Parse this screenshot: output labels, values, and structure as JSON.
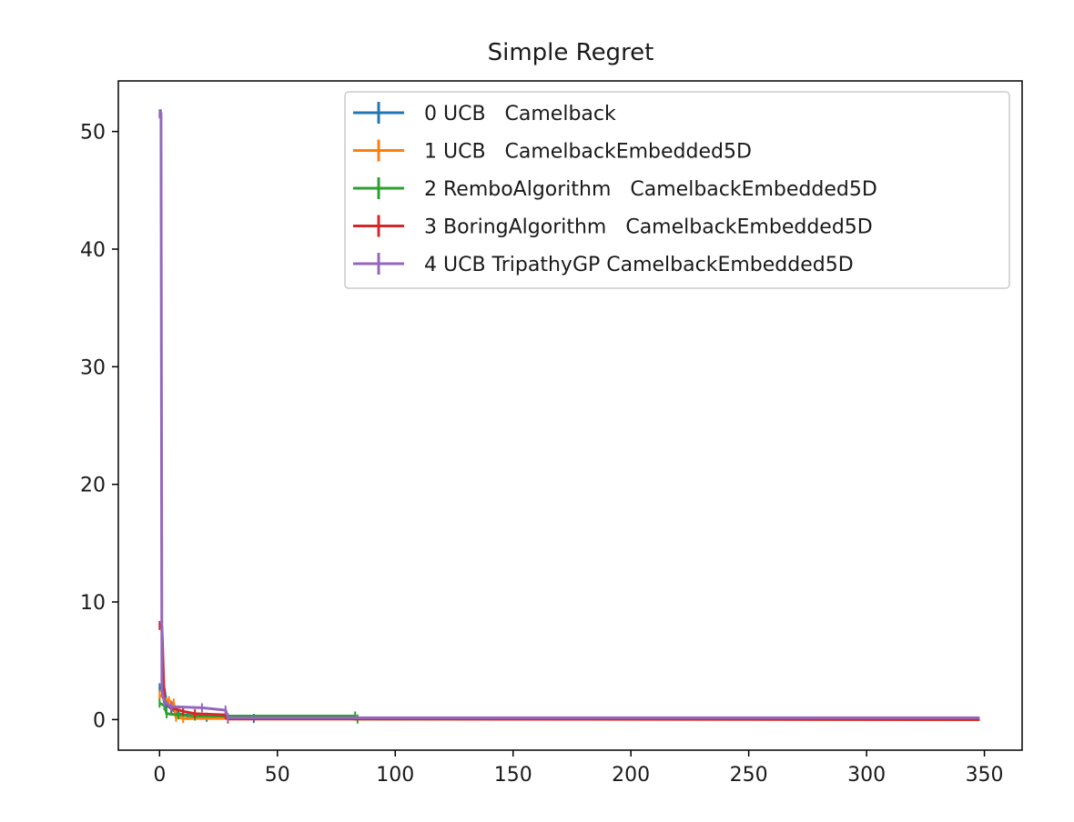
{
  "chart_data": {
    "type": "line",
    "title": "Simple Regret",
    "xlabel": "",
    "ylabel": "",
    "xlim": [
      -17.5,
      366
    ],
    "ylim": [
      -2.6,
      54.3
    ],
    "xticks": [
      0,
      50,
      100,
      150,
      200,
      250,
      300,
      350
    ],
    "yticks": [
      0,
      10,
      20,
      30,
      40,
      50
    ],
    "grid": false,
    "legend_position": "top-right",
    "series": [
      {
        "name": "0 UCB   Camelback",
        "color": "#1f77b4",
        "points": [
          [
            0,
            2.7
          ],
          [
            2,
            2.6
          ],
          [
            3,
            1.3
          ],
          [
            5,
            0.9
          ],
          [
            8,
            0.5
          ],
          [
            12,
            0.35
          ],
          [
            20,
            0.2
          ],
          [
            40,
            0.1
          ],
          [
            348,
            0.05
          ]
        ]
      },
      {
        "name": "1 UCB   CamelbackEmbedded5D",
        "color": "#ff7f0e",
        "points": [
          [
            0,
            2.1
          ],
          [
            2,
            1.8
          ],
          [
            4,
            1.6
          ],
          [
            6,
            1.4
          ],
          [
            7,
            0.2
          ],
          [
            10,
            0.1
          ],
          [
            348,
            0.0
          ]
        ]
      },
      {
        "name": "2 RemboAlgorithm   CamelbackEmbedded5D",
        "color": "#2ca02c",
        "points": [
          [
            0,
            1.4
          ],
          [
            2,
            1.2
          ],
          [
            3,
            0.5
          ],
          [
            8,
            0.4
          ],
          [
            15,
            0.3
          ],
          [
            83,
            0.3
          ],
          [
            84,
            0.05
          ],
          [
            348,
            0.05
          ]
        ]
      },
      {
        "name": "3 BoringAlgorithm   CamelbackEmbedded5D",
        "color": "#d62728",
        "points": [
          [
            0,
            8.0
          ],
          [
            1,
            7.9
          ],
          [
            2,
            1.5
          ],
          [
            5,
            1.0
          ],
          [
            10,
            0.7
          ],
          [
            15,
            0.5
          ],
          [
            28,
            0.4
          ],
          [
            29,
            0.05
          ],
          [
            348,
            0.0
          ]
        ]
      },
      {
        "name": "4 UCB TripathyGP CamelbackEmbedded5D",
        "color": "#9467bd",
        "points": [
          [
            0,
            51.5
          ],
          [
            0.6,
            51.5
          ],
          [
            1,
            2.5
          ],
          [
            2,
            1.5
          ],
          [
            5,
            1.1
          ],
          [
            18,
            1.0
          ],
          [
            28,
            0.8
          ],
          [
            29,
            0.15
          ],
          [
            348,
            0.15
          ]
        ]
      }
    ]
  }
}
